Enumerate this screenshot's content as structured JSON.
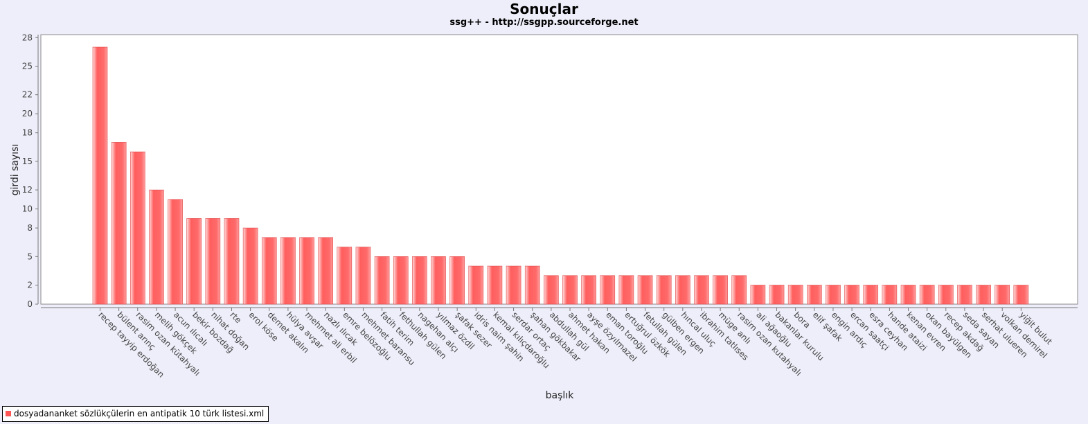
{
  "title": "Sonuçlar",
  "subtitle": "ssg++ - http://ssgpp.sourceforge.net",
  "legend": {
    "label": "dosyadananket sözlükçülerin en antipatik 10 türk listesi.xml"
  },
  "chart_data": {
    "type": "bar",
    "xlabel": "başlık",
    "ylabel": "girdi sayısı",
    "ylim": [
      0,
      29
    ],
    "yticks": [
      0,
      2,
      5,
      8,
      10,
      12,
      15,
      18,
      20,
      22,
      25,
      28
    ],
    "bar_color": "#ff5555",
    "categories": [
      "recep tayyip erdoğan",
      "bülent arınç",
      "rasim ozan kütahyalı",
      "melih gökçek",
      "acun ılıcalı",
      "bekir bozdağ",
      "nihat doğan",
      "rte",
      "erol köse",
      "demet akalın",
      "hülya avşar",
      "mehmet ali erbil",
      "nazlı ılıcak",
      "emre belözoğlu",
      "mehmet baransu",
      "fatih terim",
      "fethullah gülen",
      "nagehan alçı",
      "yılmaz özdil",
      "şafak sezer",
      "idris naim şahin",
      "kemal kılıçdaroğlu",
      "serdar ortaç",
      "şahan gökbakar",
      "abdullah gül",
      "ahmet hakan",
      "ayşe özyılmazel",
      "eman toroğlu",
      "ertuğrul özkök",
      "fetullah gülen",
      "gülben ergen",
      "hıncal uluç",
      "ibrahim tatlıses",
      "müge anlı",
      "rasim ozan kutahyalı",
      "ali ağaoğlu",
      "bakanlar kurulu",
      "bora",
      "elif şafak",
      "engin ardıç",
      "ercan saatçi",
      "esra ceyhan",
      "hande ataizi",
      "kenan evren",
      "okan bayülgen",
      "recep akdağ",
      "seda sayan",
      "serhat ulueren",
      "volkan demirel",
      "yiğit bulut"
    ],
    "values": [
      27,
      17,
      16,
      12,
      11,
      9,
      9,
      9,
      8,
      7,
      7,
      7,
      7,
      6,
      6,
      5,
      5,
      5,
      5,
      5,
      4,
      4,
      4,
      4,
      3,
      3,
      3,
      3,
      3,
      3,
      3,
      3,
      3,
      3,
      3,
      2,
      2,
      2,
      2,
      2,
      2,
      2,
      2,
      2,
      2,
      2,
      2,
      2,
      2,
      2
    ]
  }
}
